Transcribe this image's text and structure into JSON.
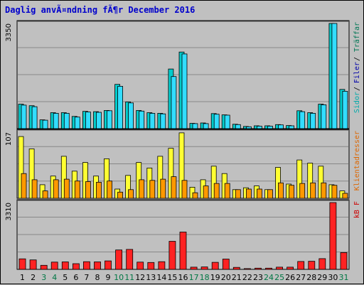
{
  "chart_data": {
    "type": "bar",
    "title": "Daglig anvÃ¤ndning fÃ¶r December 2016",
    "categories": [
      "1",
      "2",
      "3",
      "4",
      "5",
      "6",
      "7",
      "8",
      "9",
      "10",
      "11",
      "12",
      "13",
      "14",
      "15",
      "16",
      "17",
      "18",
      "19",
      "20",
      "21",
      "22",
      "23",
      "24",
      "25",
      "26",
      "27",
      "28",
      "29",
      "30",
      "31"
    ],
    "weekend_days": [
      "3",
      "4",
      "10",
      "11",
      "17",
      "18",
      "24",
      "25",
      "31"
    ],
    "colors": {
      "title": "#0000cc",
      "weekday_label": "#000000",
      "weekend_label": "#007744",
      "traffar": "#00cccc",
      "filer": "#33ddff",
      "sidor": "#66ccff",
      "klientadresser": "#ffff33",
      "besok": "#ff9900",
      "kb": "#ff2222",
      "panel_bg": "#c0c0c0",
      "gridline": "#888888"
    },
    "panels": [
      {
        "name": "hits",
        "ymax_label": "3350",
        "ymax": 3350,
        "legend": [
          {
            "text": "Träffar",
            "color": "#007755"
          },
          {
            "text": "Filer",
            "color": "#0000aa"
          },
          {
            "text": "Sidor",
            "color": "#00aaaa"
          }
        ],
        "legend_separator": "/",
        "series": [
          {
            "name": "Träffar",
            "color": "#00cccc",
            "values": [
              780,
              730,
              280,
              510,
              510,
              390,
              550,
              540,
              580,
              1410,
              850,
              580,
              510,
              490,
              1900,
              2440,
              170,
              180,
              480,
              440,
              140,
              70,
              90,
              90,
              130,
              100,
              570,
              510,
              780,
              3350,
              1250
            ]
          },
          {
            "name": "Filer",
            "color": "#33ddff",
            "values": [
              750,
              700,
              270,
              490,
              490,
              370,
              530,
              520,
              570,
              1350,
              820,
              560,
              490,
              470,
              1660,
              2380,
              160,
              160,
              460,
              430,
              130,
              60,
              80,
              80,
              120,
              90,
              540,
              490,
              760,
              3350,
              1190
            ]
          }
        ]
      },
      {
        "name": "visits",
        "ymax_label": "107",
        "ymax": 107,
        "legend": [
          {
            "text": "Klientadresser",
            "color": "#dd6600"
          }
        ],
        "series": [
          {
            "name": "Klientadresser",
            "color": "#ffff33",
            "values": [
              100,
              80,
              22,
              36,
              68,
              44,
              58,
              36,
              64,
              15,
              37,
              58,
              49,
              68,
              81,
              106,
              18,
              30,
              52,
              40,
              14,
              17,
              20,
              14,
              50,
              23,
              62,
              57,
              52,
              22,
              12
            ]
          },
          {
            "name": "Besök",
            "color": "#ff9900",
            "values": [
              40,
              30,
              12,
              30,
              31,
              28,
              27,
              26,
              28,
              10,
              14,
              30,
              29,
              31,
              35,
              29,
              9,
              20,
              24,
              24,
              14,
              15,
              15,
              14,
              25,
              21,
              24,
              25,
              25,
              21,
              8
            ]
          }
        ]
      },
      {
        "name": "kb",
        "ymax_label": "3310",
        "ymax": 3310,
        "legend": [
          {
            "text": "kB F",
            "color": "#cc0000"
          }
        ],
        "series": [
          {
            "name": "kB F",
            "color": "#ff2222",
            "values": [
              520,
              470,
              200,
              360,
              370,
              280,
              380,
              370,
              420,
              960,
              990,
              360,
              340,
              380,
              1390,
              1850,
              110,
              120,
              350,
              510,
              100,
              40,
              60,
              60,
              110,
              110,
              390,
              400,
              530,
              3310,
              830
            ]
          }
        ]
      }
    ]
  }
}
